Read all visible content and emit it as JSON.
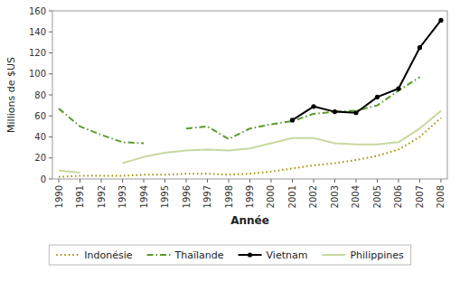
{
  "chart_data": {
    "type": "line",
    "x": [
      1990,
      1991,
      1992,
      1993,
      1994,
      1995,
      1996,
      1997,
      1998,
      1999,
      2000,
      2001,
      2002,
      2003,
      2004,
      2005,
      2006,
      2007,
      2008
    ],
    "series": [
      {
        "name": "Indonésie",
        "color": "#a09000",
        "line_style": "dotted",
        "values": [
          2,
          3,
          3,
          3,
          4,
          4,
          5,
          5,
          4,
          5,
          7,
          10,
          13,
          15,
          18,
          22,
          28,
          40,
          58
        ]
      },
      {
        "name": "Thaïlande",
        "color": "#5a9a2e",
        "line_style": "dashdot",
        "values": [
          67,
          50,
          42,
          35,
          34,
          null,
          48,
          50,
          38,
          48,
          52,
          55,
          62,
          64,
          65,
          70,
          84,
          97,
          null
        ]
      },
      {
        "name": "Vietnam",
        "color": "#000000",
        "line_style": "solid",
        "marker": "circle",
        "values": [
          null,
          null,
          null,
          null,
          null,
          null,
          null,
          null,
          null,
          null,
          null,
          56,
          69,
          64,
          63,
          78,
          86,
          125,
          151
        ]
      },
      {
        "name": "Philippines",
        "color": "#c8d8a0",
        "line_style": "solid",
        "values": [
          8,
          6,
          null,
          15,
          21,
          25,
          27,
          28,
          27,
          29,
          34,
          39,
          39,
          34,
          33,
          33,
          35,
          48,
          65
        ]
      }
    ],
    "xlabel": "Année",
    "ylabel": "Millions de $US",
    "xlim": [
      1989.7,
      2008.3
    ],
    "xticks": [
      1990,
      1991,
      1992,
      1993,
      1994,
      1995,
      1996,
      1997,
      1998,
      1999,
      2000,
      2001,
      2002,
      2003,
      2004,
      2005,
      2006,
      2007,
      2008
    ],
    "ylim": [
      0,
      160
    ],
    "yticks": [
      0,
      20,
      40,
      60,
      80,
      100,
      120,
      140,
      160
    ],
    "grid": false,
    "legend": "bottom"
  }
}
